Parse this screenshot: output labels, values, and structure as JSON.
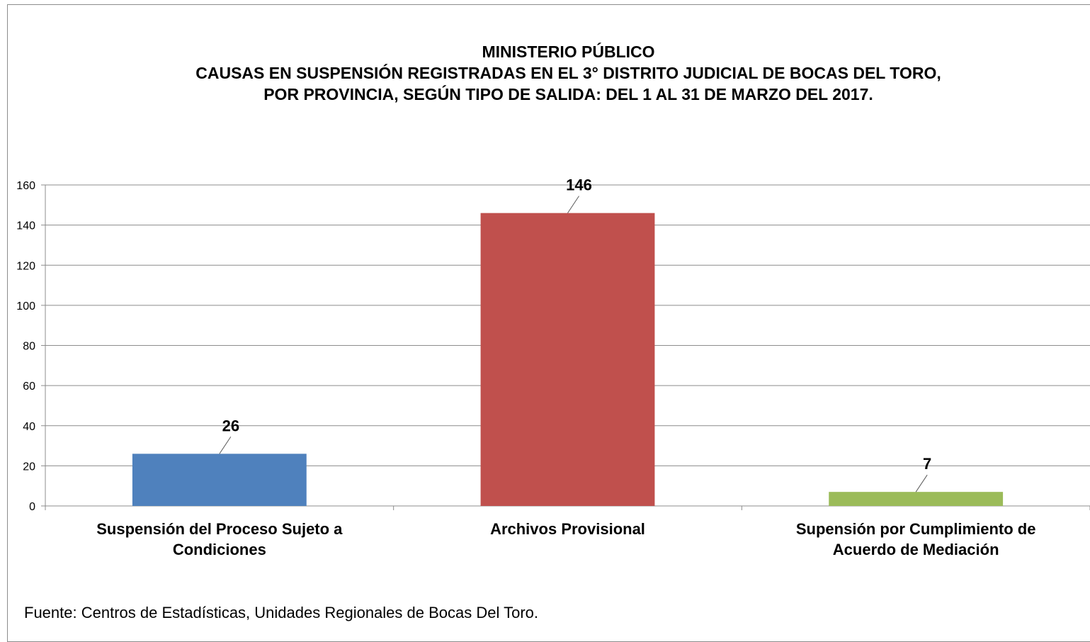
{
  "chart_data": {
    "type": "bar",
    "title_lines": [
      "MINISTERIO PÚBLICO",
      "CAUSAS EN SUSPENSIÓN REGISTRADAS EN EL 3° DISTRITO JUDICIAL DE BOCAS DEL TORO,",
      "POR PROVINCIA, SEGÚN TIPO DE SALIDA: DEL 1 AL 31 DE MARZO DEL 2017."
    ],
    "categories": [
      [
        "Suspensión del Proceso Sujeto a",
        "Condiciones"
      ],
      [
        "Archivos Provisional"
      ],
      [
        "Supensión por Cumplimiento de",
        "Acuerdo de Mediación"
      ]
    ],
    "values": [
      26,
      146,
      7
    ],
    "colors": [
      "#4f81bd",
      "#c0504d",
      "#9bbb59"
    ],
    "ylim": [
      0,
      160
    ],
    "yticks": [
      0,
      20,
      40,
      60,
      80,
      100,
      120,
      140,
      160
    ],
    "grid": true,
    "legend": "none",
    "source": "Fuente: Centros de Estadísticas, Unidades Regionales de Bocas Del Toro."
  }
}
